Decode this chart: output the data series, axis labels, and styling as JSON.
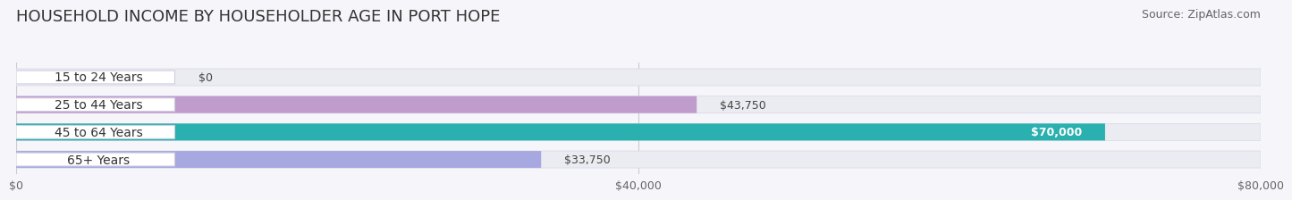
{
  "title": "HOUSEHOLD INCOME BY HOUSEHOLDER AGE IN PORT HOPE",
  "source": "Source: ZipAtlas.com",
  "categories": [
    "15 to 24 Years",
    "25 to 44 Years",
    "45 to 64 Years",
    "65+ Years"
  ],
  "values": [
    0,
    43750,
    70000,
    33750
  ],
  "bar_colors": [
    "#b0c8e8",
    "#c09ccc",
    "#2ab0ae",
    "#a8a8e0"
  ],
  "xlim": [
    0,
    80000
  ],
  "xticks": [
    0,
    40000,
    80000
  ],
  "xtick_labels": [
    "$0",
    "$40,000",
    "$80,000"
  ],
  "label_inside_threshold": 60000,
  "title_fontsize": 13,
  "source_fontsize": 9,
  "tick_fontsize": 9,
  "bar_label_fontsize": 9,
  "category_fontsize": 10,
  "bg_color": "#f5f5fa",
  "bar_bg_color": "#ebebf2"
}
